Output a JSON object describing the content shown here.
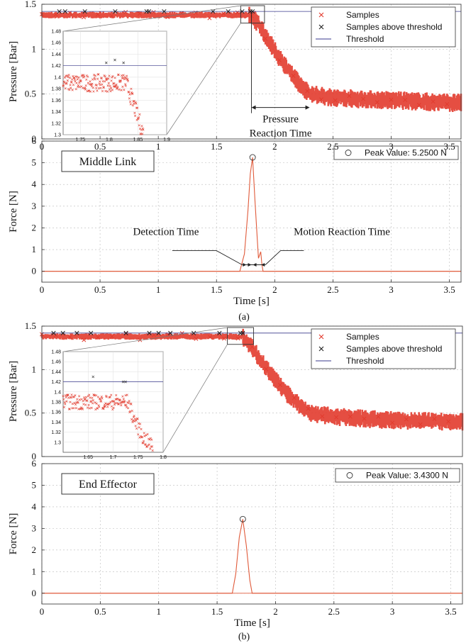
{
  "colors": {
    "samples": "#e23b2e",
    "samples_above": "#222222",
    "threshold": "#3a3a8c",
    "force": "#e05a3a"
  },
  "chart_data": [
    {
      "id": "a-pressure",
      "type": "scatter",
      "title": "",
      "xlabel": "",
      "ylabel": "Pressure [Bar]",
      "xlim": [
        0,
        3.6
      ],
      "ylim": [
        0,
        1.5
      ],
      "x_ticks": [
        "0",
        "0.5",
        "1",
        "1.5",
        "2",
        "2.5",
        "3",
        "3.5"
      ],
      "y_ticks": [
        "0",
        "0.5",
        "1",
        "1.5"
      ],
      "grid": true,
      "legend": {
        "position": "top-right",
        "entries": [
          "Samples",
          "Samples above threshold",
          "Threshold"
        ]
      },
      "threshold": 1.42,
      "series": [
        {
          "name": "Samples",
          "x": [
            0,
            0.5,
            1.0,
            1.5,
            1.78,
            1.85,
            1.9,
            2.0,
            2.1,
            2.2,
            2.3,
            2.5,
            2.8,
            3.2,
            3.6
          ],
          "y": [
            1.38,
            1.38,
            1.38,
            1.38,
            1.38,
            1.3,
            1.2,
            0.98,
            0.8,
            0.63,
            0.5,
            0.46,
            0.44,
            0.42,
            0.4
          ]
        },
        {
          "name": "Samples above threshold",
          "x": [
            0.15,
            0.2,
            0.37,
            0.63,
            0.9,
            0.92,
            1.05,
            1.47,
            1.6,
            1.72,
            1.79,
            1.81
          ],
          "y": [
            1.42,
            1.42,
            1.42,
            1.42,
            1.42,
            1.42,
            1.42,
            1.42,
            1.42,
            1.42,
            1.42,
            1.42
          ]
        }
      ],
      "inset": {
        "xlim": [
          1.72,
          1.9
        ],
        "ylim": [
          1.3,
          1.48
        ],
        "x_ticks": [
          "1.75",
          "1.8",
          "1.85",
          "1.9"
        ],
        "y_ticks": [
          "1.3",
          "1.32",
          "1.34",
          "1.36",
          "1.38",
          "1.4",
          "1.42",
          "1.44",
          "1.46",
          "1.48"
        ],
        "threshold": 1.42,
        "above_points": {
          "x": [
            1.795,
            1.81,
            1.825
          ],
          "y": [
            1.425,
            1.43,
            1.425
          ]
        },
        "pressure": {
          "x": [
            1.72,
            1.76,
            1.8,
            1.83,
            1.84,
            1.85,
            1.86
          ],
          "y": [
            1.39,
            1.39,
            1.39,
            1.39,
            1.36,
            1.33,
            1.3
          ]
        }
      },
      "annotations": [
        {
          "text_lines": [
            "Pressure",
            "Reaction Time"
          ],
          "x_range": [
            1.8,
            2.3
          ]
        }
      ]
    },
    {
      "id": "a-force",
      "type": "line",
      "title": "",
      "xlabel": "Time [s]",
      "ylabel": "Force [N]",
      "xlim": [
        0,
        3.6
      ],
      "ylim": [
        -0.5,
        6
      ],
      "x_ticks": [
        "0",
        "0.5",
        "1",
        "1.5",
        "2",
        "2.5",
        "3",
        "3.5"
      ],
      "y_ticks": [
        "0",
        "1",
        "2",
        "3",
        "4",
        "5",
        "6"
      ],
      "grid": true,
      "label_box": "Middle Link",
      "peak_legend": "Peak Value: 5.2500 N",
      "peak": {
        "x": 1.81,
        "y": 5.25
      },
      "series": [
        {
          "name": "Force",
          "x": [
            0,
            1.7,
            1.74,
            1.77,
            1.79,
            1.81,
            1.83,
            1.85,
            1.86,
            1.88,
            1.89,
            1.9,
            1.92,
            3.6
          ],
          "y": [
            0,
            0,
            0.8,
            2.8,
            4.5,
            5.25,
            3.3,
            1.5,
            0.6,
            0.9,
            0.3,
            0,
            0,
            0
          ]
        }
      ],
      "annotations": [
        {
          "text": "Detection Time",
          "x_range": [
            1.72,
            1.8
          ]
        },
        {
          "text": "Motion Reaction Time",
          "x_range": [
            1.81,
            1.92
          ]
        }
      ]
    },
    {
      "id": "b-pressure",
      "type": "scatter",
      "title": "",
      "xlabel": "",
      "ylabel": "Pressure [Bar]",
      "xlim": [
        0,
        3.6
      ],
      "ylim": [
        0,
        1.5
      ],
      "x_ticks": [],
      "y_ticks": [
        "0",
        "0.5",
        "1",
        "1.5"
      ],
      "grid": true,
      "legend": {
        "position": "top-right",
        "entries": [
          "Samples",
          "Samples above threshold",
          "Threshold"
        ]
      },
      "threshold": 1.42,
      "series": [
        {
          "name": "Samples",
          "x": [
            0,
            0.5,
            1.0,
            1.5,
            1.72,
            1.8,
            1.9,
            2.0,
            2.1,
            2.2,
            2.3,
            2.5,
            2.8,
            3.2,
            3.6
          ],
          "y": [
            1.38,
            1.38,
            1.38,
            1.38,
            1.38,
            1.25,
            1.06,
            0.88,
            0.72,
            0.6,
            0.5,
            0.46,
            0.43,
            0.41,
            0.4
          ]
        },
        {
          "name": "Samples above threshold",
          "x": [
            0.1,
            0.18,
            0.3,
            0.42,
            0.72,
            0.92,
            1.0,
            1.1,
            1.3,
            1.52,
            1.7,
            1.72
          ],
          "y": [
            1.42,
            1.42,
            1.42,
            1.42,
            1.42,
            1.42,
            1.42,
            1.42,
            1.42,
            1.42,
            1.42,
            1.42
          ]
        }
      ],
      "inset": {
        "xlim": [
          1.6,
          1.8
        ],
        "ylim": [
          1.28,
          1.48
        ],
        "x_ticks": [
          "1.65",
          "1.7",
          "1.75",
          "1.8"
        ],
        "y_ticks": [
          "1.3",
          "1.32",
          "1.34",
          "1.36",
          "1.38",
          "1.4",
          "1.42",
          "1.44",
          "1.46",
          "1.48"
        ],
        "threshold": 1.42,
        "above_points": {
          "x": [
            1.66,
            1.72,
            1.725
          ],
          "y": [
            1.43,
            1.42,
            1.42
          ]
        },
        "pressure": {
          "x": [
            1.6,
            1.65,
            1.7,
            1.73,
            1.74,
            1.76,
            1.78
          ],
          "y": [
            1.38,
            1.38,
            1.38,
            1.38,
            1.35,
            1.31,
            1.29
          ]
        }
      }
    },
    {
      "id": "b-force",
      "type": "line",
      "title": "",
      "xlabel": "Time [s]",
      "ylabel": "Force [N]",
      "xlim": [
        0,
        3.6
      ],
      "ylim": [
        -0.5,
        6
      ],
      "x_ticks": [
        "0",
        "0.5",
        "1",
        "1.5",
        "2",
        "2.5",
        "3",
        "3.5"
      ],
      "y_ticks": [
        "0",
        "1",
        "2",
        "3",
        "4",
        "5",
        "6"
      ],
      "grid": true,
      "label_box": "End Effector",
      "peak_legend": "Peak Value: 3.4300 N",
      "peak": {
        "x": 1.72,
        "y": 3.43
      },
      "series": [
        {
          "name": "Force",
          "x": [
            0,
            1.63,
            1.66,
            1.69,
            1.72,
            1.75,
            1.78,
            1.8,
            3.6
          ],
          "y": [
            0,
            0,
            0.9,
            2.6,
            3.43,
            2.2,
            0.6,
            0,
            0
          ]
        }
      ]
    }
  ],
  "captions": {
    "a": "(a)",
    "b": "(b)"
  }
}
